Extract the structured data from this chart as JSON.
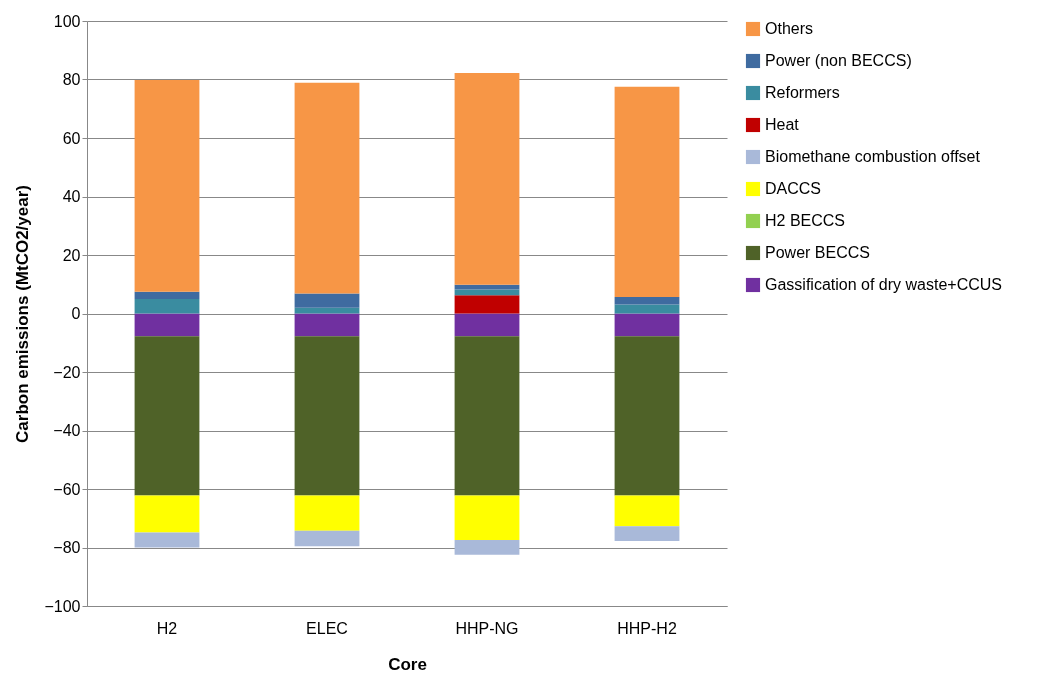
{
  "chart_data": {
    "type": "bar",
    "stacked": true,
    "ylabel": "Carbon emissions (MtCO2/year)",
    "xlabel": "Core",
    "categories": [
      "H2",
      "ELEC",
      "HHP-NG",
      "HHP-H2"
    ],
    "ylim": [
      -100,
      100
    ],
    "yticks": [
      -100,
      -80,
      -60,
      -40,
      -20,
      0,
      20,
      40,
      60,
      80,
      100
    ],
    "grid": "y",
    "legend": "right",
    "series": [
      {
        "name": "Gassification of dry waste+CCUS",
        "color": "#7030a0",
        "values": [
          -7.8,
          -7.8,
          -7.8,
          -7.8
        ]
      },
      {
        "name": "Power BECCS",
        "color": "#4f6228",
        "values": [
          -54.4,
          -54.4,
          -54.4,
          -54.4
        ]
      },
      {
        "name": "H2 BECCS",
        "color": "#92d050",
        "values": [
          0,
          0,
          0,
          0
        ]
      },
      {
        "name": "DACCS",
        "color": "#ffff00",
        "values": [
          -12.7,
          -12.1,
          -15.2,
          -10.5
        ]
      },
      {
        "name": "Biomethane combustion offset",
        "color": "#a9b9d9",
        "values": [
          -5.1,
          -5.3,
          -5.1,
          -5.1
        ]
      },
      {
        "name": "Heat",
        "color": "#c00000",
        "values": [
          0,
          0,
          6.2,
          0
        ]
      },
      {
        "name": "Reformers",
        "color": "#3a8ca0",
        "values": [
          5.0,
          2.0,
          2.0,
          3.1
        ]
      },
      {
        "name": "Power (non BECCS)",
        "color": "#3f6ba0",
        "values": [
          2.4,
          4.8,
          1.6,
          2.5
        ]
      },
      {
        "name": "Others",
        "color": "#f79646",
        "values": [
          72.4,
          72.1,
          72.4,
          71.9
        ]
      }
    ]
  }
}
